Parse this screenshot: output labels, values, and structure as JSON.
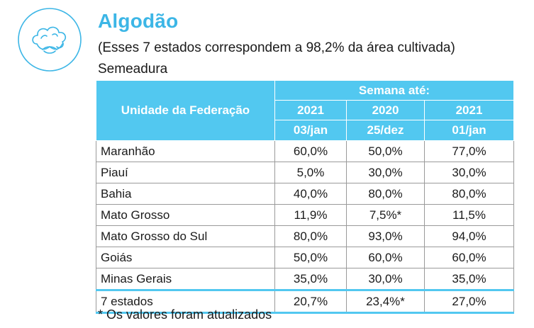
{
  "header": {
    "icon": "cotton-icon",
    "title": "Algodão",
    "subtitle": "(Esses 7 estados correspondem a 98,2% da área cultivada)",
    "section_label": "Semeadura"
  },
  "table": {
    "col_label": "Unidade da Federação",
    "group_label": "Semana até:",
    "years": [
      "2021",
      "2020",
      "2021"
    ],
    "dates": [
      "03/jan",
      "25/dez",
      "01/jan"
    ],
    "rows": [
      {
        "name": "Maranhão",
        "values": [
          "60,0%",
          "50,0%",
          "77,0%"
        ]
      },
      {
        "name": "Piauí",
        "values": [
          "5,0%",
          "30,0%",
          "30,0%"
        ]
      },
      {
        "name": "Bahia",
        "values": [
          "40,0%",
          "80,0%",
          "80,0%"
        ]
      },
      {
        "name": "Mato Grosso",
        "values": [
          "11,9%",
          "7,5%*",
          "11,5%"
        ]
      },
      {
        "name": "Mato Grosso do Sul",
        "values": [
          "80,0%",
          "93,0%",
          "94,0%"
        ]
      },
      {
        "name": "Goiás",
        "values": [
          "50,0%",
          "60,0%",
          "60,0%"
        ]
      },
      {
        "name": "Minas Gerais",
        "values": [
          "35,0%",
          "30,0%",
          "35,0%"
        ]
      }
    ],
    "total": {
      "name": "7 estados",
      "values": [
        "20,7%",
        "23,4%*",
        "27,0%"
      ]
    }
  },
  "footnote": "* Os valores foram atualizados",
  "colors": {
    "accent": "#3cb6e6",
    "header_bg": "#52c8f0",
    "grid": "#9a9a9a"
  }
}
